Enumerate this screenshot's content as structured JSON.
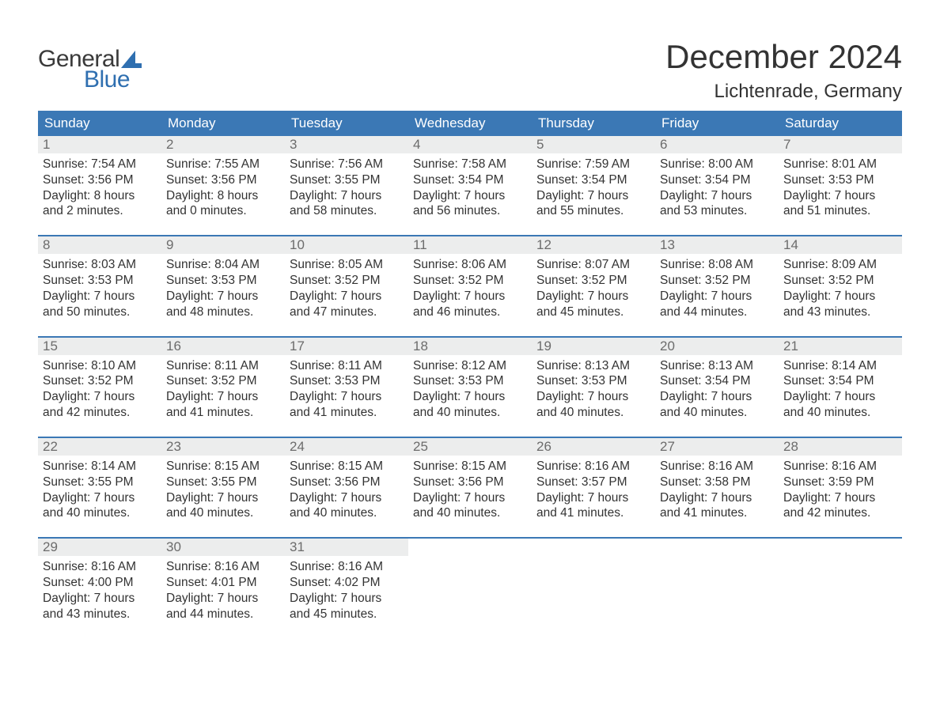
{
  "logo": {
    "word1": "General",
    "word2": "Blue",
    "sail_color": "#2f6fb0",
    "text_color_dark": "#3a3a3a"
  },
  "title": "December 2024",
  "location": "Lichtenrade, Germany",
  "colors": {
    "header_bg": "#3b78b5",
    "header_text": "#ffffff",
    "daynum_bg": "#eceded",
    "daynum_text": "#6c6c6c",
    "body_text": "#333333",
    "week_border": "#3b78b5",
    "page_bg": "#ffffff"
  },
  "typography": {
    "title_fontsize": 42,
    "location_fontsize": 24,
    "dayheader_fontsize": 17,
    "daynum_fontsize": 17,
    "cell_fontsize": 15.5,
    "logo_fontsize": 30
  },
  "columns": [
    "Sunday",
    "Monday",
    "Tuesday",
    "Wednesday",
    "Thursday",
    "Friday",
    "Saturday"
  ],
  "weeks": [
    [
      {
        "day": "1",
        "sunrise": "Sunrise: 7:54 AM",
        "sunset": "Sunset: 3:56 PM",
        "dl1": "Daylight: 8 hours",
        "dl2": "and 2 minutes."
      },
      {
        "day": "2",
        "sunrise": "Sunrise: 7:55 AM",
        "sunset": "Sunset: 3:56 PM",
        "dl1": "Daylight: 8 hours",
        "dl2": "and 0 minutes."
      },
      {
        "day": "3",
        "sunrise": "Sunrise: 7:56 AM",
        "sunset": "Sunset: 3:55 PM",
        "dl1": "Daylight: 7 hours",
        "dl2": "and 58 minutes."
      },
      {
        "day": "4",
        "sunrise": "Sunrise: 7:58 AM",
        "sunset": "Sunset: 3:54 PM",
        "dl1": "Daylight: 7 hours",
        "dl2": "and 56 minutes."
      },
      {
        "day": "5",
        "sunrise": "Sunrise: 7:59 AM",
        "sunset": "Sunset: 3:54 PM",
        "dl1": "Daylight: 7 hours",
        "dl2": "and 55 minutes."
      },
      {
        "day": "6",
        "sunrise": "Sunrise: 8:00 AM",
        "sunset": "Sunset: 3:54 PM",
        "dl1": "Daylight: 7 hours",
        "dl2": "and 53 minutes."
      },
      {
        "day": "7",
        "sunrise": "Sunrise: 8:01 AM",
        "sunset": "Sunset: 3:53 PM",
        "dl1": "Daylight: 7 hours",
        "dl2": "and 51 minutes."
      }
    ],
    [
      {
        "day": "8",
        "sunrise": "Sunrise: 8:03 AM",
        "sunset": "Sunset: 3:53 PM",
        "dl1": "Daylight: 7 hours",
        "dl2": "and 50 minutes."
      },
      {
        "day": "9",
        "sunrise": "Sunrise: 8:04 AM",
        "sunset": "Sunset: 3:53 PM",
        "dl1": "Daylight: 7 hours",
        "dl2": "and 48 minutes."
      },
      {
        "day": "10",
        "sunrise": "Sunrise: 8:05 AM",
        "sunset": "Sunset: 3:52 PM",
        "dl1": "Daylight: 7 hours",
        "dl2": "and 47 minutes."
      },
      {
        "day": "11",
        "sunrise": "Sunrise: 8:06 AM",
        "sunset": "Sunset: 3:52 PM",
        "dl1": "Daylight: 7 hours",
        "dl2": "and 46 minutes."
      },
      {
        "day": "12",
        "sunrise": "Sunrise: 8:07 AM",
        "sunset": "Sunset: 3:52 PM",
        "dl1": "Daylight: 7 hours",
        "dl2": "and 45 minutes."
      },
      {
        "day": "13",
        "sunrise": "Sunrise: 8:08 AM",
        "sunset": "Sunset: 3:52 PM",
        "dl1": "Daylight: 7 hours",
        "dl2": "and 44 minutes."
      },
      {
        "day": "14",
        "sunrise": "Sunrise: 8:09 AM",
        "sunset": "Sunset: 3:52 PM",
        "dl1": "Daylight: 7 hours",
        "dl2": "and 43 minutes."
      }
    ],
    [
      {
        "day": "15",
        "sunrise": "Sunrise: 8:10 AM",
        "sunset": "Sunset: 3:52 PM",
        "dl1": "Daylight: 7 hours",
        "dl2": "and 42 minutes."
      },
      {
        "day": "16",
        "sunrise": "Sunrise: 8:11 AM",
        "sunset": "Sunset: 3:52 PM",
        "dl1": "Daylight: 7 hours",
        "dl2": "and 41 minutes."
      },
      {
        "day": "17",
        "sunrise": "Sunrise: 8:11 AM",
        "sunset": "Sunset: 3:53 PM",
        "dl1": "Daylight: 7 hours",
        "dl2": "and 41 minutes."
      },
      {
        "day": "18",
        "sunrise": "Sunrise: 8:12 AM",
        "sunset": "Sunset: 3:53 PM",
        "dl1": "Daylight: 7 hours",
        "dl2": "and 40 minutes."
      },
      {
        "day": "19",
        "sunrise": "Sunrise: 8:13 AM",
        "sunset": "Sunset: 3:53 PM",
        "dl1": "Daylight: 7 hours",
        "dl2": "and 40 minutes."
      },
      {
        "day": "20",
        "sunrise": "Sunrise: 8:13 AM",
        "sunset": "Sunset: 3:54 PM",
        "dl1": "Daylight: 7 hours",
        "dl2": "and 40 minutes."
      },
      {
        "day": "21",
        "sunrise": "Sunrise: 8:14 AM",
        "sunset": "Sunset: 3:54 PM",
        "dl1": "Daylight: 7 hours",
        "dl2": "and 40 minutes."
      }
    ],
    [
      {
        "day": "22",
        "sunrise": "Sunrise: 8:14 AM",
        "sunset": "Sunset: 3:55 PM",
        "dl1": "Daylight: 7 hours",
        "dl2": "and 40 minutes."
      },
      {
        "day": "23",
        "sunrise": "Sunrise: 8:15 AM",
        "sunset": "Sunset: 3:55 PM",
        "dl1": "Daylight: 7 hours",
        "dl2": "and 40 minutes."
      },
      {
        "day": "24",
        "sunrise": "Sunrise: 8:15 AM",
        "sunset": "Sunset: 3:56 PM",
        "dl1": "Daylight: 7 hours",
        "dl2": "and 40 minutes."
      },
      {
        "day": "25",
        "sunrise": "Sunrise: 8:15 AM",
        "sunset": "Sunset: 3:56 PM",
        "dl1": "Daylight: 7 hours",
        "dl2": "and 40 minutes."
      },
      {
        "day": "26",
        "sunrise": "Sunrise: 8:16 AM",
        "sunset": "Sunset: 3:57 PM",
        "dl1": "Daylight: 7 hours",
        "dl2": "and 41 minutes."
      },
      {
        "day": "27",
        "sunrise": "Sunrise: 8:16 AM",
        "sunset": "Sunset: 3:58 PM",
        "dl1": "Daylight: 7 hours",
        "dl2": "and 41 minutes."
      },
      {
        "day": "28",
        "sunrise": "Sunrise: 8:16 AM",
        "sunset": "Sunset: 3:59 PM",
        "dl1": "Daylight: 7 hours",
        "dl2": "and 42 minutes."
      }
    ],
    [
      {
        "day": "29",
        "sunrise": "Sunrise: 8:16 AM",
        "sunset": "Sunset: 4:00 PM",
        "dl1": "Daylight: 7 hours",
        "dl2": "and 43 minutes."
      },
      {
        "day": "30",
        "sunrise": "Sunrise: 8:16 AM",
        "sunset": "Sunset: 4:01 PM",
        "dl1": "Daylight: 7 hours",
        "dl2": "and 44 minutes."
      },
      {
        "day": "31",
        "sunrise": "Sunrise: 8:16 AM",
        "sunset": "Sunset: 4:02 PM",
        "dl1": "Daylight: 7 hours",
        "dl2": "and 45 minutes."
      },
      null,
      null,
      null,
      null
    ]
  ]
}
